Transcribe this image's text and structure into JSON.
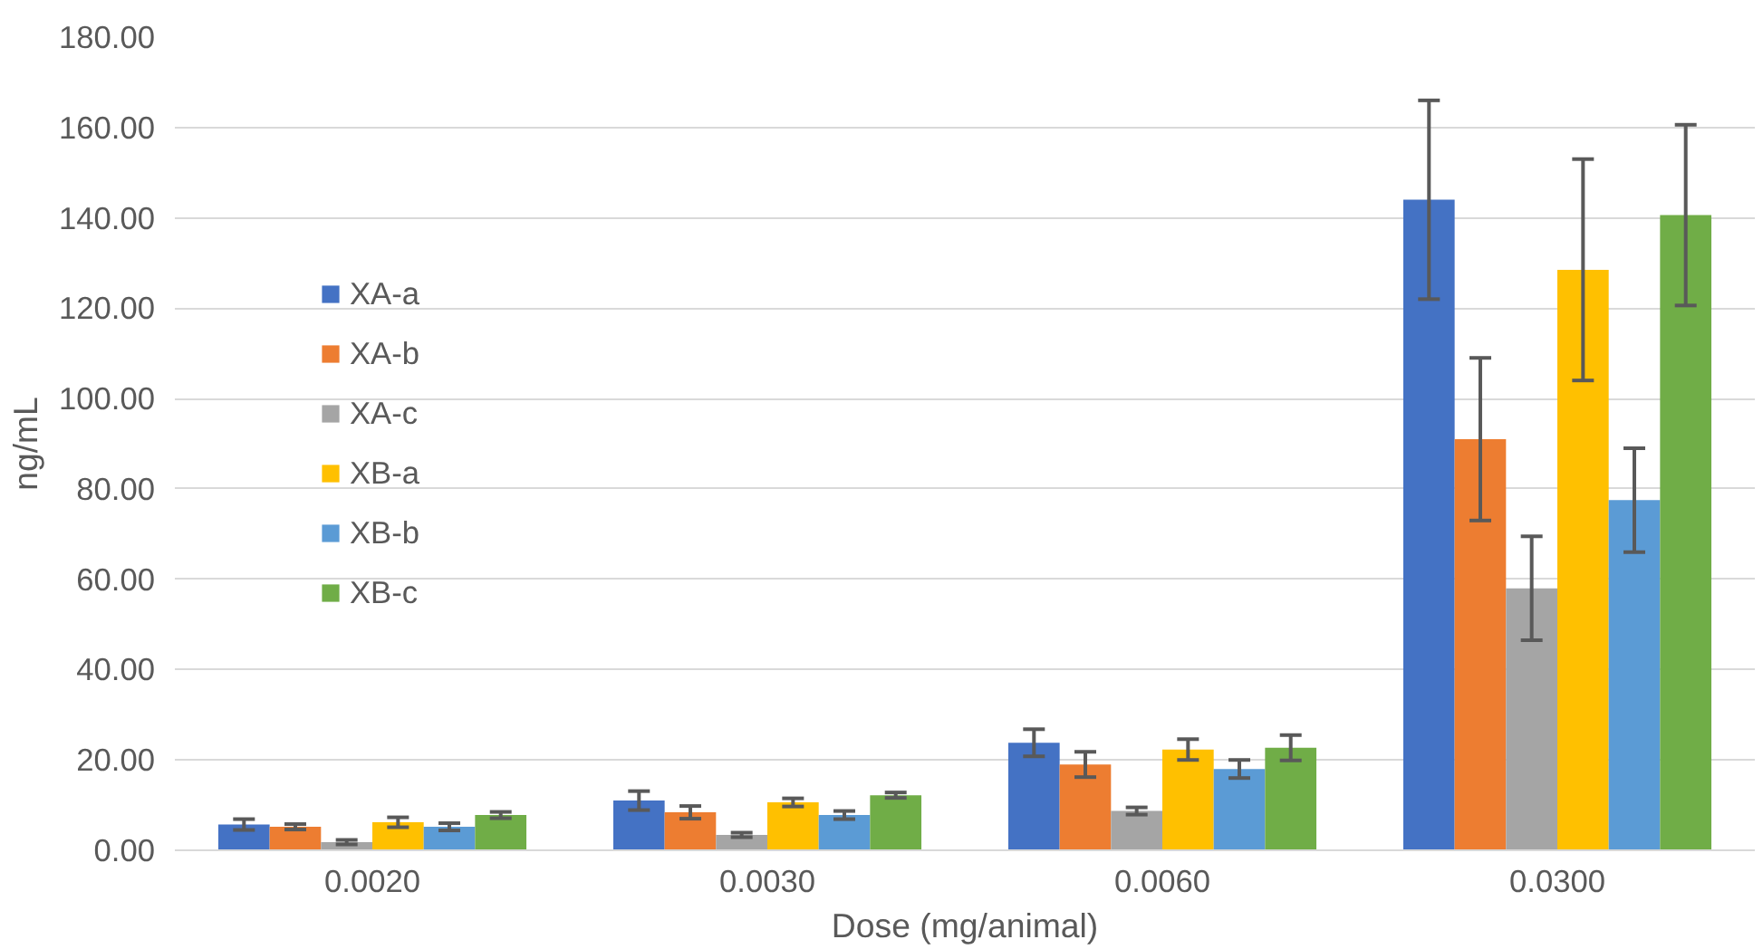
{
  "chart_data": {
    "type": "bar",
    "xlabel": "Dose (mg/animal)",
    "ylabel": "ng/mL",
    "categories": [
      "0.0020",
      "0.0030",
      "0.0060",
      "0.0300"
    ],
    "ylim": [
      0,
      180
    ],
    "yticks": [
      {
        "value": 0,
        "label": "0.00"
      },
      {
        "value": 20,
        "label": "20.00"
      },
      {
        "value": 40,
        "label": "40.00"
      },
      {
        "value": 60,
        "label": "60.00"
      },
      {
        "value": 80,
        "label": "80.00"
      },
      {
        "value": 100,
        "label": "100.00"
      },
      {
        "value": 120,
        "label": "120.00"
      },
      {
        "value": 140,
        "label": "140.00"
      },
      {
        "value": 160,
        "label": "160.00"
      },
      {
        "value": 180,
        "label": "180.00"
      }
    ],
    "grid": "y",
    "legend": "left",
    "series": [
      {
        "name": "XA-a",
        "color": "#4472c4",
        "values": [
          5.7,
          11,
          23.8,
          144
        ],
        "errors": [
          1.2,
          2.1,
          3,
          22
        ]
      },
      {
        "name": "XA-b",
        "color": "#ed7d31",
        "values": [
          5.2,
          8.4,
          19,
          91
        ],
        "errors": [
          0.6,
          1.4,
          2.8,
          18
        ]
      },
      {
        "name": "XA-c",
        "color": "#a5a5a5",
        "values": [
          1.8,
          3.4,
          8.7,
          58
        ],
        "errors": [
          0.5,
          0.5,
          0.8,
          11.5
        ]
      },
      {
        "name": "XB-a",
        "color": "#ffc000",
        "values": [
          6.2,
          10.6,
          22.3,
          128.5
        ],
        "errors": [
          1.1,
          0.9,
          2.3,
          24.5
        ]
      },
      {
        "name": "XB-b",
        "color": "#5b9bd5",
        "values": [
          5.2,
          7.8,
          18,
          77.5
        ],
        "errors": [
          0.8,
          0.9,
          2,
          11.5
        ]
      },
      {
        "name": "XB-c",
        "color": "#70ad47",
        "values": [
          7.8,
          12.2,
          22.7,
          140.6
        ],
        "errors": [
          0.7,
          0.6,
          2.8,
          20
        ]
      }
    ]
  }
}
